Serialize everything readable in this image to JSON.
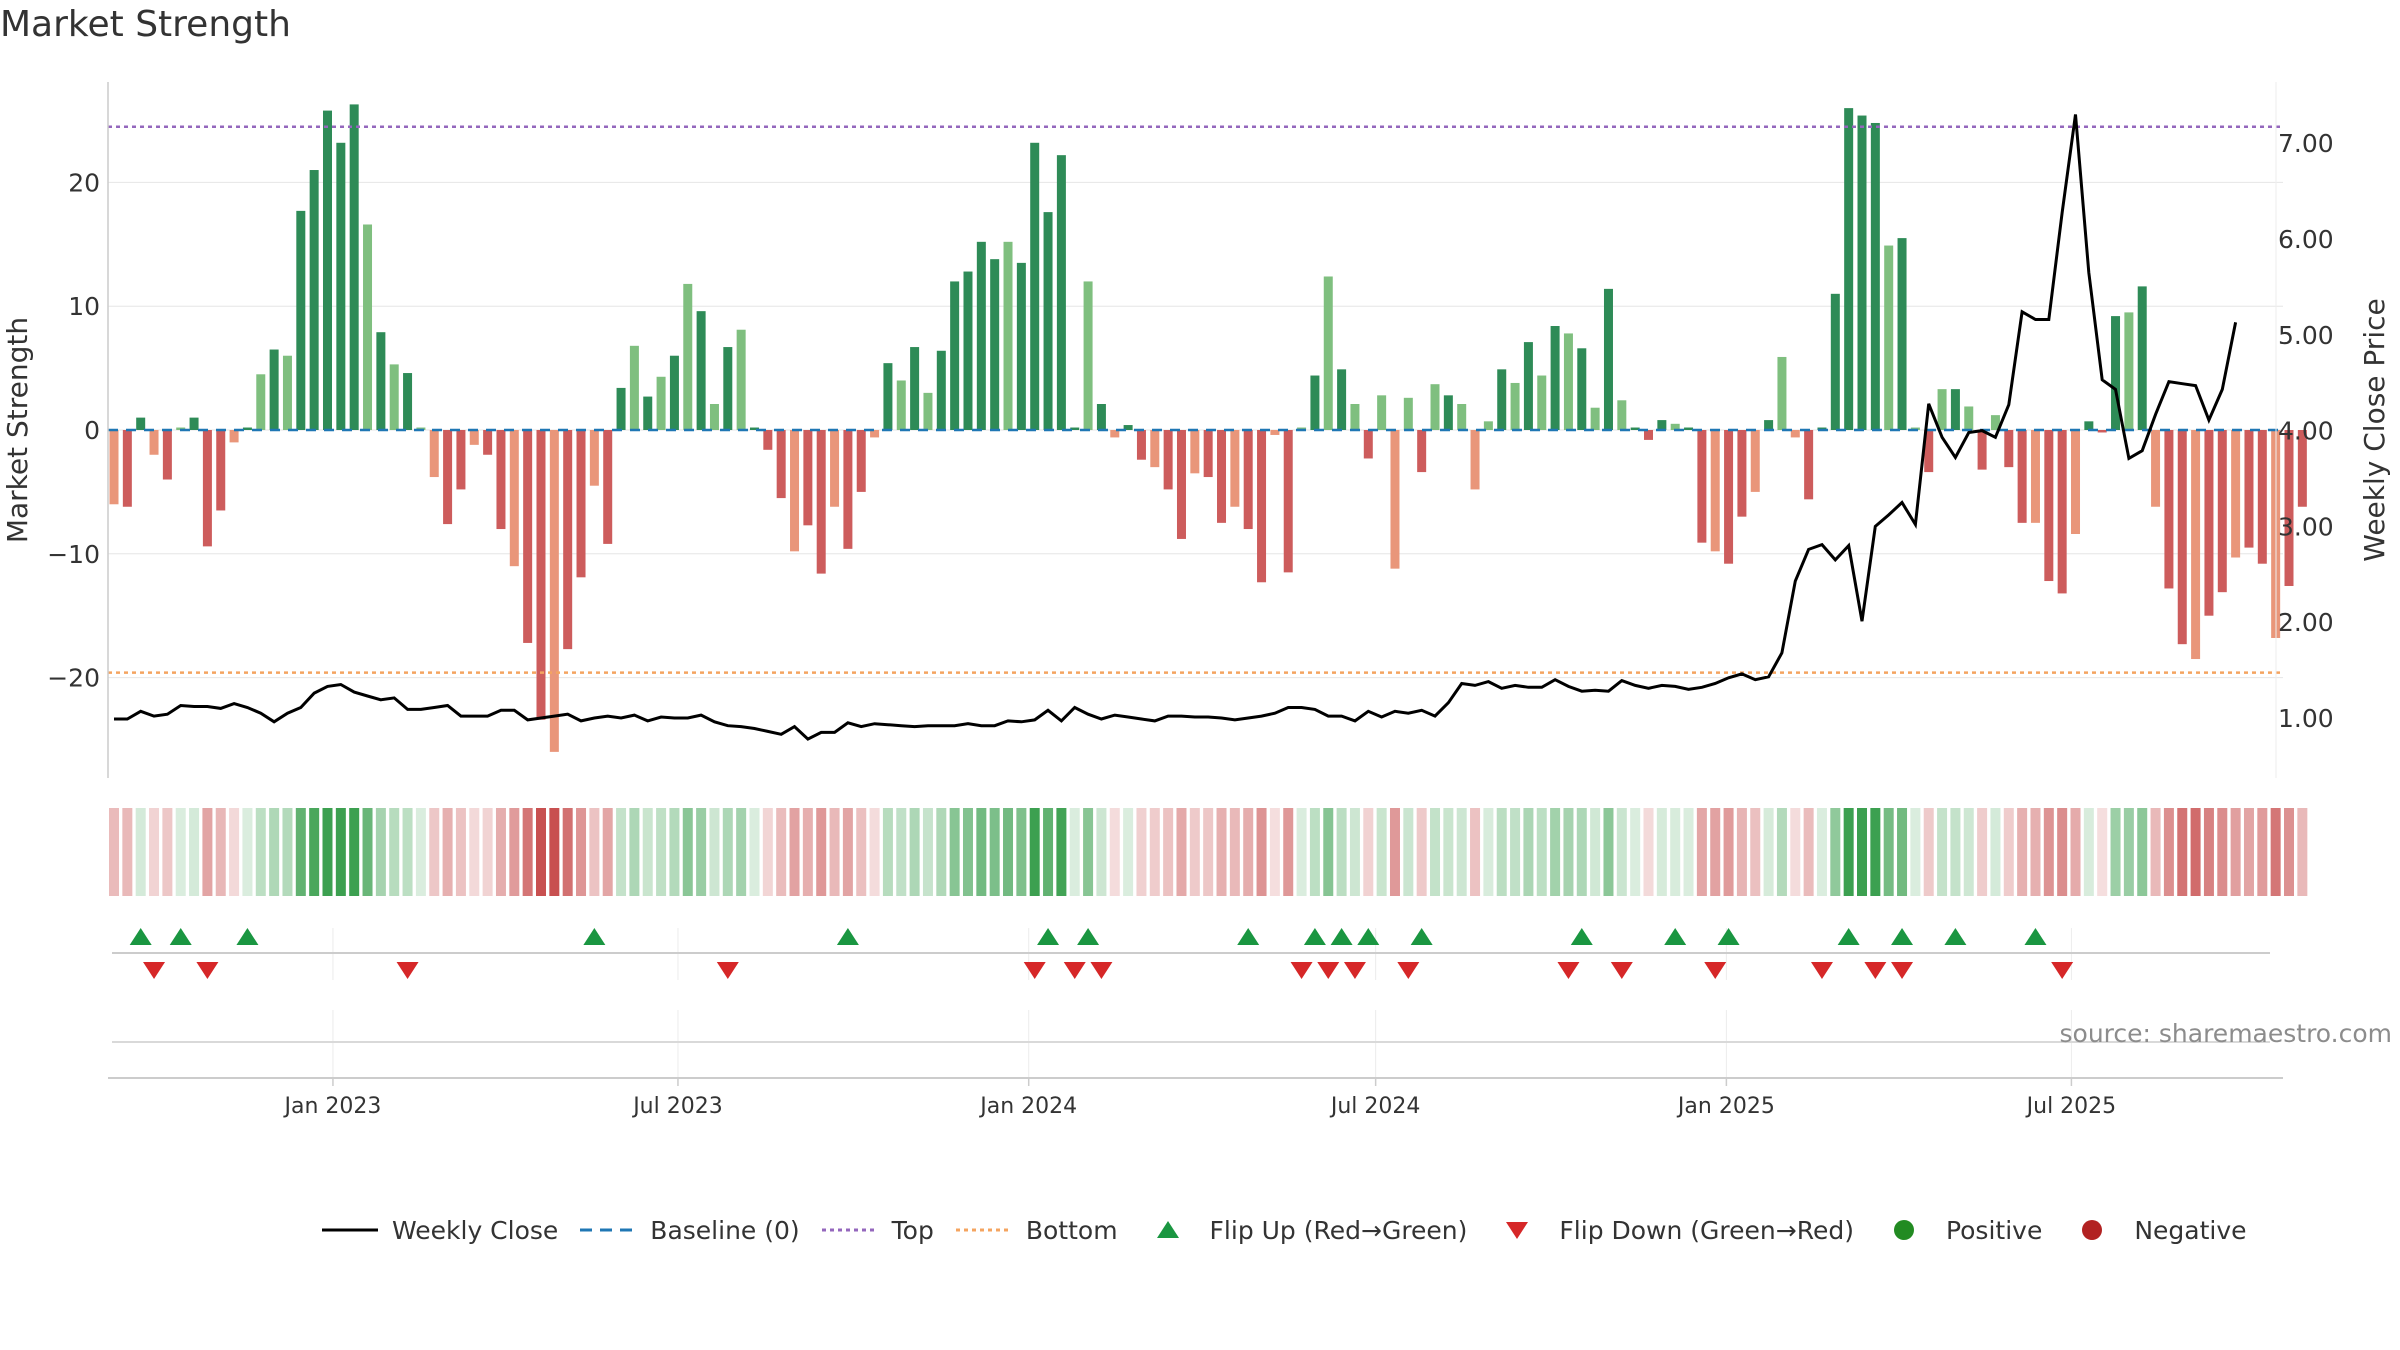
{
  "title": "Market Strength",
  "source": "source: sharemaestro.com",
  "colors": {
    "pos_strong": "#2e8b57",
    "pos_light": "#7fbf7f",
    "neg_strong": "#cd5c5c",
    "neg_light": "#e9967a",
    "baseline": "#1f77b4",
    "top": "#9467bd",
    "bottom": "#f4a460",
    "close": "#000000",
    "flip_up": "#1a9641",
    "flip_down": "#d62728",
    "positive": "#228b22",
    "negative": "#b22222"
  },
  "legend": [
    {
      "label": "Weekly Close",
      "symbol": "line-solid",
      "color": "#000000"
    },
    {
      "label": "Baseline (0)",
      "symbol": "line-dash",
      "color": "#1f77b4"
    },
    {
      "label": "Top",
      "symbol": "line-dot",
      "color": "#9467bd"
    },
    {
      "label": "Bottom",
      "symbol": "line-dot",
      "color": "#f4a460"
    },
    {
      "label": "Flip Up (Red→Green)",
      "symbol": "triangle-up",
      "color": "#1a9641"
    },
    {
      "label": "Flip Down (Green→Red)",
      "symbol": "triangle-down",
      "color": "#d62728"
    },
    {
      "label": "Positive",
      "symbol": "circle",
      "color": "#228b22"
    },
    {
      "label": "Negative",
      "symbol": "circle",
      "color": "#b22222"
    }
  ],
  "chart_data": {
    "type": "bar",
    "title": "Market Strength",
    "ylabel": "Market Strength",
    "y2label": "Weekly Close Price",
    "ylim": [
      -28,
      28
    ],
    "y2lim": [
      0.0,
      7.6
    ],
    "yticks": [
      -20,
      -10,
      0,
      10,
      20
    ],
    "y2ticks": [
      "1.00",
      "2.00",
      "3.00",
      "4.00",
      "5.00",
      "6.00",
      "7.00"
    ],
    "xlim": [
      "2022-09-05",
      "2025-10-20"
    ],
    "xticks": [
      {
        "date": "2023-01-01",
        "label": "Jan 2023"
      },
      {
        "date": "2023-07-01",
        "label": "Jul 2023"
      },
      {
        "date": "2024-01-01",
        "label": "Jan 2024"
      },
      {
        "date": "2024-07-01",
        "label": "Jul 2024"
      },
      {
        "date": "2025-01-01",
        "label": "Jan 2025"
      },
      {
        "date": "2025-07-01",
        "label": "Jul 2025"
      }
    ],
    "grid": true,
    "legend_position": "bottom",
    "start_week": "2022-09-05",
    "top_level": 24.5,
    "bottom_level": -19.6,
    "series": [
      {
        "name": "Market Strength",
        "values": [
          -6.0,
          -6.2,
          1.0,
          -2.0,
          -4.0,
          0.2,
          1.0,
          -9.4,
          -6.5,
          -1.0,
          0.2,
          4.5,
          6.5,
          6.0,
          17.7,
          21.0,
          25.8,
          23.2,
          26.3,
          16.6,
          7.9,
          5.3,
          4.6,
          0.2,
          -3.8,
          -7.6,
          -4.8,
          -1.2,
          -2.0,
          -8.0,
          -11.0,
          -17.2,
          -23.4,
          -26.0,
          -17.7,
          -11.9,
          -4.5,
          -9.2,
          3.4,
          6.8,
          2.7,
          4.3,
          6.0,
          11.8,
          9.6,
          2.1,
          6.7,
          8.1,
          0.2,
          -1.6,
          -5.5,
          -9.8,
          -7.7,
          -11.6,
          -6.2,
          -9.6,
          -5.0,
          -0.6,
          5.4,
          4.0,
          6.7,
          3.0,
          6.4,
          12.0,
          12.8,
          15.2,
          13.8,
          15.2,
          13.5,
          23.2,
          17.6,
          22.2,
          0.2,
          12.0,
          2.1,
          -0.6,
          0.4,
          -2.4,
          -3.0,
          -4.8,
          -8.8,
          -3.5,
          -3.8,
          -7.5,
          -6.2,
          -8.0,
          -12.3,
          -0.4,
          -11.5,
          0.2,
          4.4,
          12.4,
          4.9,
          2.1,
          -2.3,
          2.8,
          -11.2,
          2.6,
          -3.4,
          3.7,
          2.8,
          2.1,
          -4.8,
          0.7,
          4.9,
          3.8,
          7.1,
          4.4,
          8.4,
          7.8,
          6.6,
          1.8,
          11.4,
          2.4,
          0.2,
          -0.8,
          0.8,
          0.5,
          0.2,
          -9.1,
          -9.8,
          -10.8,
          -7.0,
          -5.0,
          0.8,
          5.9,
          -0.6,
          -5.6,
          0.2,
          11.0,
          26.0,
          25.4,
          24.8,
          14.9,
          15.5,
          0.2,
          -3.4,
          3.3,
          3.3,
          1.9,
          -3.2,
          1.2,
          -3.0,
          -7.5,
          -7.5,
          -12.2,
          -13.2,
          -8.4,
          0.7,
          -0.2,
          9.2,
          9.5,
          11.6,
          -6.2,
          -12.8,
          -17.3,
          -18.5,
          -15.0,
          -13.1,
          -10.3,
          -9.5,
          -10.8,
          -16.8,
          -12.6,
          -6.2
        ]
      },
      {
        "name": "Weekly Close",
        "values": [
          0.99,
          0.99,
          1.07,
          1.02,
          1.04,
          1.13,
          1.12,
          1.12,
          1.1,
          1.15,
          1.11,
          1.05,
          0.96,
          1.05,
          1.11,
          1.26,
          1.33,
          1.35,
          1.27,
          1.23,
          1.19,
          1.21,
          1.09,
          1.09,
          1.11,
          1.13,
          1.02,
          1.02,
          1.02,
          1.08,
          1.08,
          0.98,
          1.0,
          1.02,
          1.04,
          0.97,
          1.0,
          1.02,
          1.0,
          1.03,
          0.97,
          1.01,
          1.0,
          1.0,
          1.03,
          0.96,
          0.92,
          0.91,
          0.89,
          0.86,
          0.83,
          0.91,
          0.78,
          0.85,
          0.85,
          0.95,
          0.91,
          0.94,
          0.93,
          0.92,
          0.91,
          0.92,
          0.92,
          0.92,
          0.94,
          0.92,
          0.92,
          0.97,
          0.96,
          0.98,
          1.08,
          0.97,
          1.11,
          1.04,
          0.99,
          1.03,
          1.01,
          0.99,
          0.97,
          1.02,
          1.02,
          1.01,
          1.01,
          1.0,
          0.98,
          1.0,
          1.02,
          1.05,
          1.11,
          1.11,
          1.09,
          1.02,
          1.02,
          0.97,
          1.07,
          1.01,
          1.07,
          1.05,
          1.08,
          1.02,
          1.16,
          1.36,
          1.34,
          1.38,
          1.31,
          1.34,
          1.32,
          1.32,
          1.4,
          1.33,
          1.28,
          1.29,
          1.28,
          1.39,
          1.34,
          1.31,
          1.34,
          1.33,
          1.3,
          1.32,
          1.36,
          1.42,
          1.46,
          1.4,
          1.43,
          1.68,
          2.43,
          2.76,
          2.81,
          2.65,
          2.8,
          2.01,
          3.0,
          3.12,
          3.25,
          3.02,
          4.28,
          3.93,
          3.72,
          3.98,
          4.0,
          3.93,
          4.27,
          5.24,
          5.16,
          5.16,
          6.28,
          7.3,
          5.65,
          4.53,
          4.43,
          3.71,
          3.79,
          4.17,
          4.51,
          4.49,
          4.47,
          4.11,
          4.43,
          5.13
        ]
      }
    ],
    "flips_up_weeks": [
      2,
      5,
      10,
      36,
      55,
      70,
      73,
      85,
      90,
      92,
      94,
      98,
      110,
      117,
      121,
      130,
      134,
      138,
      144
    ],
    "flips_down_weeks": [
      3,
      7,
      22,
      46,
      69,
      72,
      74,
      89,
      91,
      93,
      97,
      109,
      113,
      120,
      128,
      132,
      134,
      146
    ],
    "colorbar_series": "Market Strength"
  }
}
